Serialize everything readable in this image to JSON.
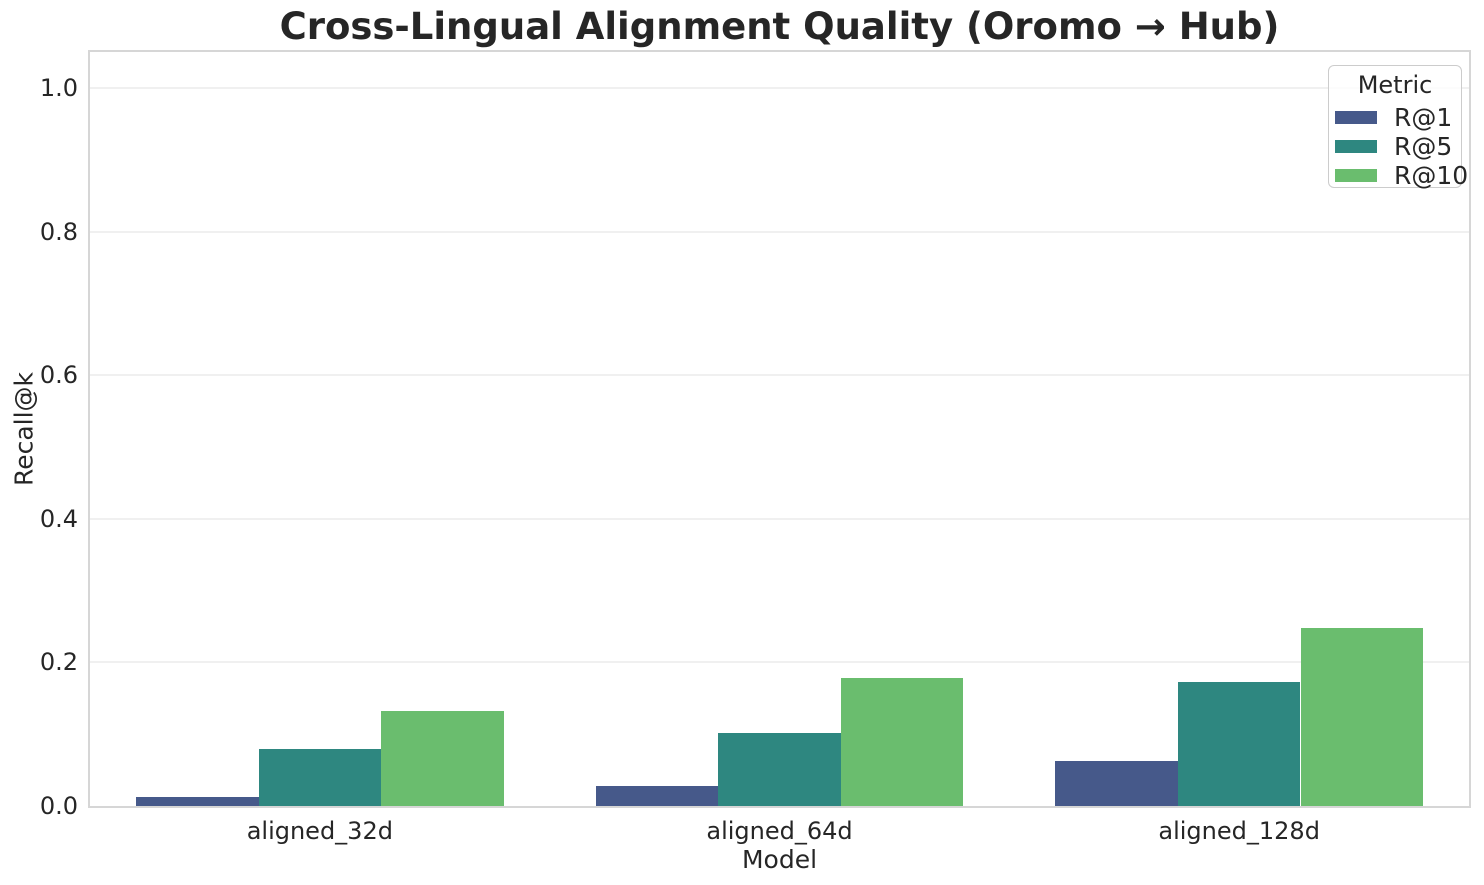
{
  "chart_data": {
    "type": "bar",
    "title": "Cross-Lingual Alignment Quality (Oromo → Hub)",
    "categories": [
      "aligned_32d",
      "aligned_64d",
      "aligned_128d"
    ],
    "series": [
      {
        "name": "R@1",
        "color": "#46598a",
        "values": [
          0.012,
          0.028,
          0.063
        ]
      },
      {
        "name": "R@5",
        "color": "#2e8780",
        "values": [
          0.08,
          0.102,
          0.173
        ]
      },
      {
        "name": "R@10",
        "color": "#6abd6e",
        "values": [
          0.132,
          0.178,
          0.248
        ]
      }
    ],
    "xlabel": "Model",
    "ylabel": "Recall@k",
    "ylim": [
      0,
      1.05
    ],
    "yticks": [
      "0.0",
      "0.2",
      "0.4",
      "0.6",
      "0.8",
      "1.0"
    ],
    "grid": "horizontal",
    "legend": {
      "title": "Metric",
      "position": "upper right"
    }
  }
}
